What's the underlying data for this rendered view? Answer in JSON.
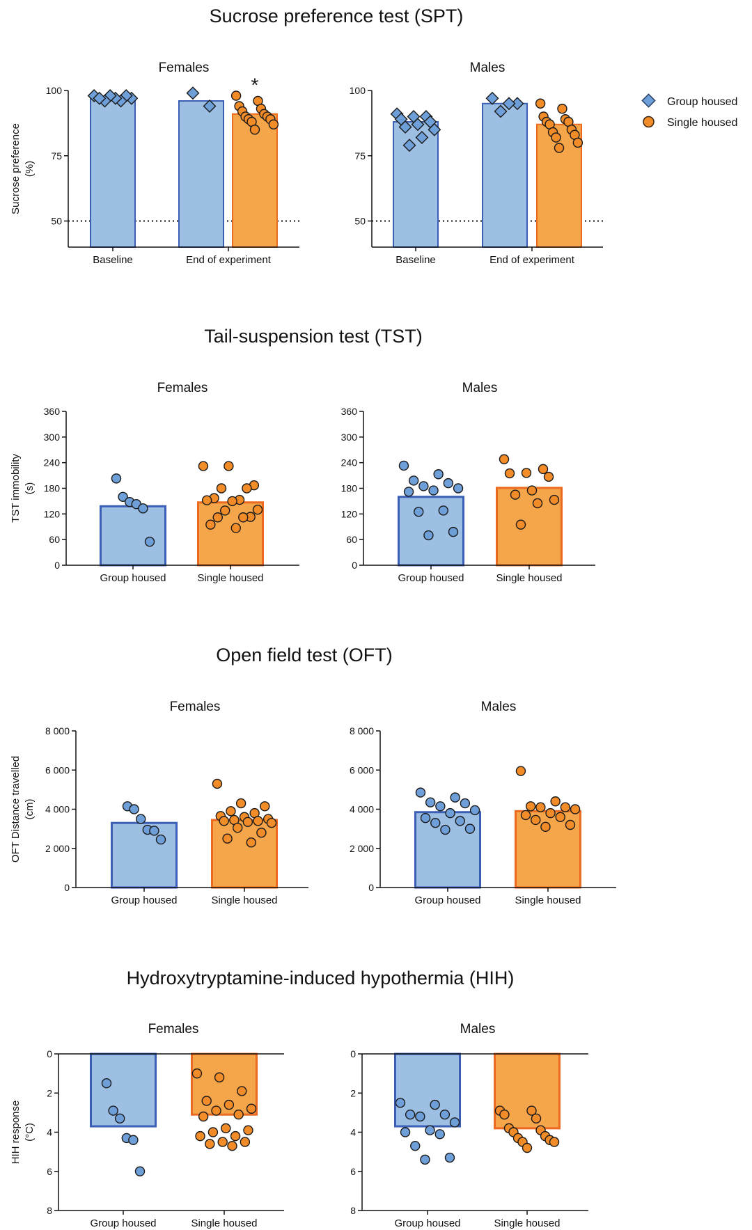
{
  "legend": {
    "items": [
      {
        "label": "Group housed",
        "marker": "diamond",
        "fill": "#6f9fd8",
        "stroke": "#2a3f66"
      },
      {
        "label": "Single housed",
        "marker": "circle",
        "fill": "#f28c28",
        "stroke": "#3a2410"
      }
    ]
  },
  "colors": {
    "group_bar_fill": "#9dbfe4",
    "group_bar_stroke": "#3a5fb5",
    "single_bar_fill": "#f5a54a",
    "single_bar_stroke": "#ec6a1f",
    "group_point_fill": "#6f9fd8",
    "single_point_fill": "#f28c28",
    "point_stroke": "#1a1a1a"
  },
  "chart_data": [
    {
      "id": "spt-females",
      "section_title": "Sucrose preference test (SPT)",
      "title": "Females",
      "type": "bar",
      "ylabel": [
        "Sucrose preference",
        "(%)"
      ],
      "ylim": [
        40,
        100
      ],
      "yticks": [
        50,
        75,
        100
      ],
      "tick_labels": [
        "50",
        "75",
        "100"
      ],
      "reference_line": 50,
      "categories": [
        "Baseline",
        "End of experiment"
      ],
      "bars": [
        {
          "category": 0,
          "group": "group",
          "value": 97,
          "points": [
            98,
            97,
            98,
            96,
            97,
            98,
            96,
            97
          ],
          "marker": "diamond"
        },
        {
          "category": 1,
          "group": "group",
          "value": 96,
          "points": [
            99,
            94
          ],
          "marker": "diamond"
        },
        {
          "category": 1,
          "group": "single",
          "value": 91,
          "points": [
            98,
            96,
            94,
            93,
            92,
            91,
            90,
            90,
            89,
            89,
            88,
            87,
            85
          ],
          "marker": "circle"
        }
      ],
      "annotations": [
        {
          "text": "*",
          "bar": 2
        }
      ]
    },
    {
      "id": "spt-males",
      "title": "Males",
      "type": "bar",
      "ylim": [
        40,
        100
      ],
      "yticks": [
        50,
        75,
        100
      ],
      "tick_labels": [
        "50",
        "75",
        "100"
      ],
      "reference_line": 50,
      "categories": [
        "Baseline",
        "End of experiment"
      ],
      "bars": [
        {
          "category": 0,
          "group": "group",
          "value": 88,
          "points": [
            91,
            90,
            90,
            89,
            88,
            87,
            86,
            85,
            82,
            79
          ],
          "marker": "diamond"
        },
        {
          "category": 1,
          "group": "group",
          "value": 95,
          "points": [
            97,
            95,
            95,
            92
          ],
          "marker": "diamond"
        },
        {
          "category": 1,
          "group": "single",
          "value": 87,
          "points": [
            95,
            93,
            90,
            89,
            88,
            88,
            87,
            85,
            84,
            83,
            82,
            80,
            78
          ],
          "marker": "circle"
        }
      ]
    },
    {
      "id": "tst-females",
      "section_title": "Tail-suspension test (TST)",
      "title": "Females",
      "type": "bar",
      "ylabel": [
        "TST immobility",
        "(s)"
      ],
      "ylim": [
        0,
        360
      ],
      "yticks": [
        0,
        60,
        120,
        180,
        240,
        300,
        360
      ],
      "tick_labels": [
        "0",
        "60",
        "120",
        "180",
        "240",
        "300",
        "360"
      ],
      "categories": [
        "Group housed",
        "Single housed"
      ],
      "bars": [
        {
          "category": 0,
          "group": "group",
          "value": 138,
          "points": [
            203,
            160,
            148,
            143,
            133,
            55
          ],
          "marker": "circle"
        },
        {
          "category": 1,
          "group": "single",
          "value": 147,
          "points": [
            232,
            232,
            187,
            180,
            180,
            157,
            153,
            152,
            150,
            130,
            128,
            113,
            112,
            112,
            95,
            87
          ],
          "marker": "circle"
        }
      ]
    },
    {
      "id": "tst-males",
      "title": "Males",
      "type": "bar",
      "ylim": [
        0,
        360
      ],
      "yticks": [
        0,
        60,
        120,
        180,
        240,
        300,
        360
      ],
      "tick_labels": [
        "0",
        "60",
        "120",
        "180",
        "240",
        "300",
        "360"
      ],
      "categories": [
        "Group housed",
        "Single housed"
      ],
      "bars": [
        {
          "category": 0,
          "group": "group",
          "value": 160,
          "points": [
            233,
            213,
            198,
            192,
            185,
            180,
            175,
            172,
            128,
            125,
            78,
            70
          ],
          "marker": "circle"
        },
        {
          "category": 1,
          "group": "single",
          "value": 181,
          "points": [
            248,
            225,
            216,
            215,
            207,
            175,
            165,
            153,
            145,
            95
          ],
          "marker": "circle"
        }
      ]
    },
    {
      "id": "oft-females",
      "section_title": "Open field test (OFT)",
      "title": "Females",
      "type": "bar",
      "ylabel": [
        "OFT Distance travelled",
        "(cm)"
      ],
      "ylim": [
        0,
        8000
      ],
      "yticks": [
        0,
        2000,
        4000,
        6000,
        8000
      ],
      "tick_labels": [
        "0",
        "2 000",
        "4 000",
        "6 000",
        "8 000"
      ],
      "categories": [
        "Group housed",
        "Single housed"
      ],
      "bars": [
        {
          "category": 0,
          "group": "group",
          "value": 3300,
          "points": [
            4150,
            4000,
            3500,
            2950,
            2900,
            2450
          ],
          "marker": "circle"
        },
        {
          "category": 1,
          "group": "single",
          "value": 3450,
          "points": [
            5300,
            4300,
            4150,
            3900,
            3800,
            3650,
            3600,
            3500,
            3450,
            3400,
            3400,
            3350,
            3300,
            3050,
            2800,
            2500,
            2300
          ],
          "marker": "circle"
        }
      ]
    },
    {
      "id": "oft-males",
      "title": "Males",
      "type": "bar",
      "ylim": [
        0,
        8000
      ],
      "yticks": [
        0,
        2000,
        4000,
        6000,
        8000
      ],
      "tick_labels": [
        "0",
        "2 000",
        "4 000",
        "6 000",
        "8 000"
      ],
      "categories": [
        "Group housed",
        "Single housed"
      ],
      "bars": [
        {
          "category": 0,
          "group": "group",
          "value": 3850,
          "points": [
            4850,
            4600,
            4350,
            4300,
            4150,
            3950,
            3800,
            3550,
            3400,
            3300,
            3000,
            2950
          ],
          "marker": "circle"
        },
        {
          "category": 1,
          "group": "single",
          "value": 3900,
          "points": [
            5950,
            4400,
            4150,
            4100,
            4100,
            4000,
            3800,
            3700,
            3600,
            3450,
            3200,
            3100
          ],
          "marker": "circle"
        }
      ]
    },
    {
      "id": "hih-females",
      "section_title": "Hydroxytryptamine-induced hypothermia (HIH)",
      "title": "Females",
      "type": "bar",
      "ylabel": [
        "HIH response",
        "(°C)"
      ],
      "inverted_y": true,
      "ylim": [
        0,
        8
      ],
      "yticks": [
        0,
        2,
        4,
        6,
        8
      ],
      "tick_labels": [
        "0",
        "2",
        "4",
        "6",
        "8"
      ],
      "categories": [
        "Group housed",
        "Single housed"
      ],
      "bars": [
        {
          "category": 0,
          "group": "group",
          "value": 3.7,
          "points": [
            1.5,
            2.9,
            3.3,
            4.3,
            4.4,
            6.0
          ],
          "marker": "circle"
        },
        {
          "category": 1,
          "group": "single",
          "value": 3.1,
          "points": [
            1.0,
            1.2,
            1.9,
            2.4,
            2.6,
            2.8,
            2.9,
            3.1,
            3.2,
            3.8,
            3.9,
            4.0,
            4.2,
            4.2,
            4.5,
            4.5,
            4.6,
            4.7
          ],
          "marker": "circle"
        }
      ]
    },
    {
      "id": "hih-males",
      "title": "Males",
      "type": "bar",
      "inverted_y": true,
      "ylim": [
        0,
        8
      ],
      "yticks": [
        0,
        2,
        4,
        6,
        8
      ],
      "tick_labels": [
        "0",
        "2",
        "4",
        "6",
        "8"
      ],
      "categories": [
        "Group housed",
        "Single housed"
      ],
      "bars": [
        {
          "category": 0,
          "group": "group",
          "value": 3.7,
          "points": [
            2.5,
            2.6,
            3.1,
            3.1,
            3.2,
            3.5,
            3.9,
            4.0,
            4.1,
            4.7,
            5.3,
            5.4
          ],
          "marker": "circle"
        },
        {
          "category": 1,
          "group": "single",
          "value": 3.8,
          "points": [
            2.9,
            2.9,
            3.1,
            3.3,
            3.8,
            3.9,
            4.0,
            4.2,
            4.3,
            4.4,
            4.5,
            4.5,
            4.8
          ],
          "marker": "circle"
        }
      ]
    }
  ]
}
